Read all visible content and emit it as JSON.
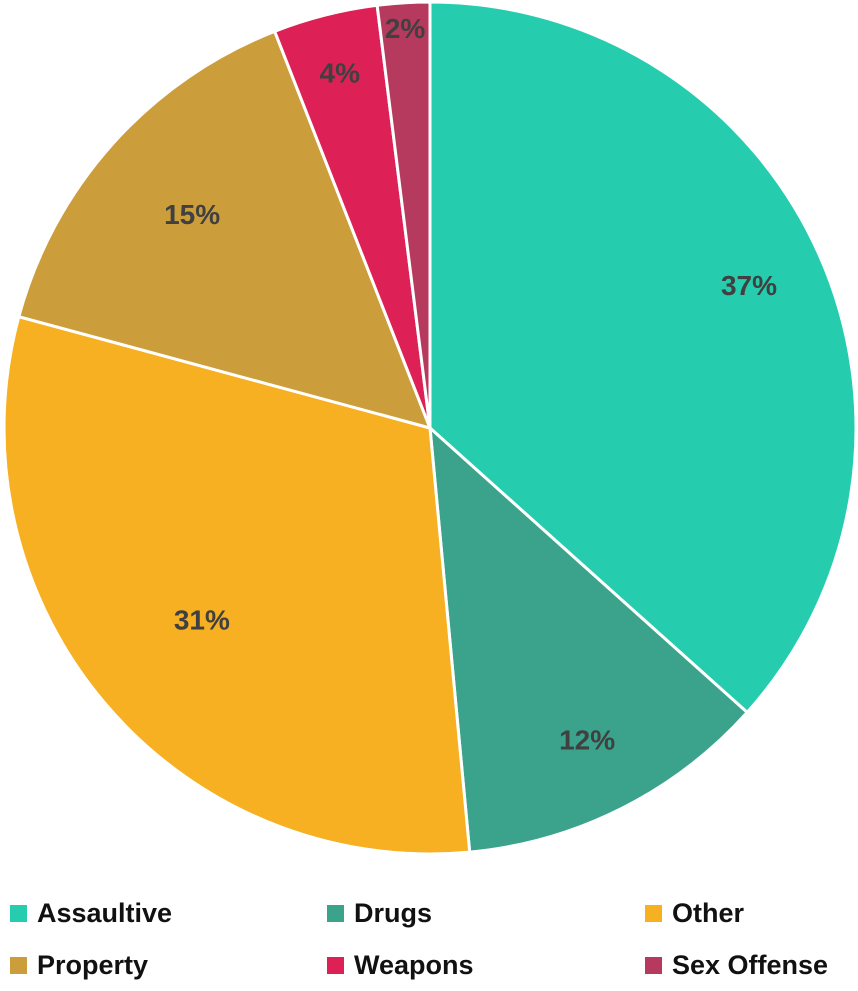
{
  "chart_data": {
    "type": "pie",
    "title": "",
    "categories": [
      "Assaultive",
      "Drugs",
      "Other",
      "Property",
      "Weapons",
      "Sex Offense"
    ],
    "values": [
      37,
      12,
      31,
      15,
      4,
      2
    ],
    "labels": [
      "37%",
      "12%",
      "31%",
      "15%",
      "4%",
      "2%"
    ],
    "colors": [
      "#26CCAE",
      "#3BA38C",
      "#F6B021",
      "#CC9E3B",
      "#DD2156",
      "#B63A5E"
    ],
    "start_angle": "12 o'clock",
    "direction": "clockwise",
    "legend_position": "bottom"
  }
}
